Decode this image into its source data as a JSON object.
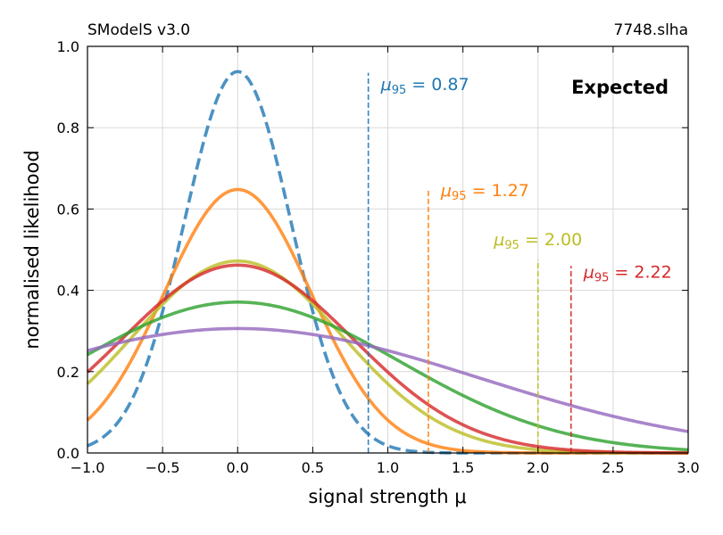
{
  "header": {
    "left_label": "SModelS v3.0",
    "right_label": "7748.slha"
  },
  "chart_data": {
    "type": "line",
    "title": "",
    "xlabel": "signal strength μ",
    "ylabel": "normalised likelihood",
    "xlim": [
      -1.0,
      3.0
    ],
    "ylim": [
      0.0,
      1.0
    ],
    "x_ticks": [
      "−1.0",
      "−0.5",
      "0.0",
      "0.5",
      "1.0",
      "1.5",
      "2.0",
      "2.5",
      "3.0"
    ],
    "y_ticks": [
      "0.0",
      "0.2",
      "0.4",
      "0.6",
      "0.8",
      "1.0"
    ],
    "grid": true,
    "legend": "none",
    "annotation": "Expected",
    "series": [
      {
        "peak_x": 0.0,
        "peak_y": 0.938,
        "width": 0.355,
        "color": "#1f77b4",
        "style": "dashed"
      },
      {
        "peak_x": 0.0,
        "peak_y": 0.648,
        "width": 0.49,
        "color": "#ff7f0e",
        "style": "solid"
      },
      {
        "peak_x": 0.0,
        "peak_y": 0.472,
        "width": 0.7,
        "color": "#bcbd22",
        "style": "solid"
      },
      {
        "peak_x": 0.0,
        "peak_y": 0.462,
        "width": 0.77,
        "color": "#d62728",
        "style": "solid"
      },
      {
        "peak_x": 0.0,
        "peak_y": 0.371,
        "width": 1.08,
        "color": "#2ca02c",
        "style": "solid"
      },
      {
        "peak_x": 0.0,
        "peak_y": 0.306,
        "width": 1.6,
        "color": "#9467bd",
        "style": "solid"
      }
    ],
    "limits": [
      {
        "x": 0.87,
        "ymax": 0.935,
        "label_value": "0.87",
        "label_y": 0.893,
        "label_anchor": "start",
        "color": "#1f77b4"
      },
      {
        "x": 1.27,
        "ymax": 0.645,
        "label_value": "1.27",
        "label_y": 0.632,
        "label_anchor": "start",
        "color": "#ff7f0e"
      },
      {
        "x": 2.0,
        "ymax": 0.475,
        "label_value": "2.00",
        "label_y": 0.511,
        "label_anchor": "middle",
        "color": "#bcbd22"
      },
      {
        "x": 2.22,
        "ymax": 0.46,
        "label_value": "2.22",
        "label_y": 0.431,
        "label_anchor": "start",
        "color": "#d62728"
      }
    ]
  }
}
